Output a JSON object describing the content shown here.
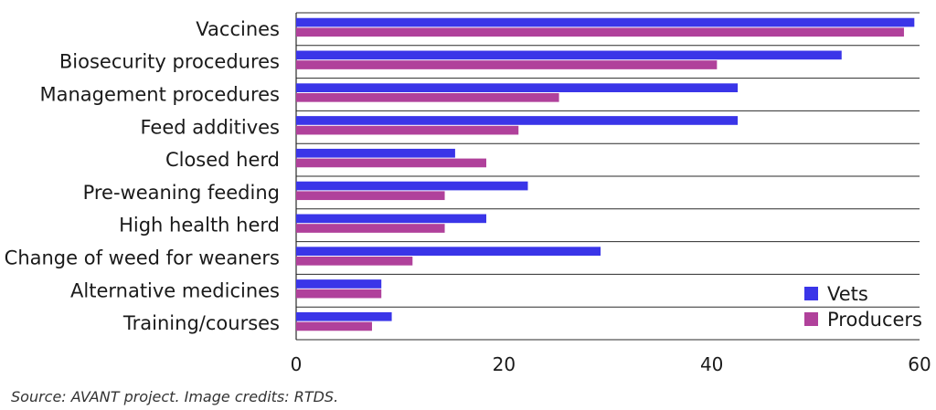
{
  "chart_data": {
    "type": "bar",
    "orientation": "horizontal",
    "categories": [
      "Vaccines",
      "Biosecurity procedures",
      "Management procedures",
      "Feed additives",
      "Closed herd",
      "Pre-weaning feeding",
      "High health herd",
      "Change of weed for weaners",
      "Alternative medicines",
      "Training/courses"
    ],
    "series": [
      {
        "name": "Vets",
        "color": "#3a35e8",
        "values": [
          59.5,
          52.5,
          42.5,
          42.5,
          15.3,
          22.3,
          18.3,
          29.3,
          8.2,
          9.2
        ]
      },
      {
        "name": "Producers",
        "color": "#b0419b",
        "values": [
          58.5,
          40.5,
          25.3,
          21.4,
          18.3,
          14.3,
          14.3,
          11.2,
          8.2,
          7.3
        ]
      }
    ],
    "xlim": [
      0,
      60
    ],
    "xticks": [
      "0",
      "20",
      "40",
      "60"
    ],
    "grid": true,
    "legend_position": "bottom-right"
  },
  "caption": "Source: AVANT project. Image credits: RTDS."
}
